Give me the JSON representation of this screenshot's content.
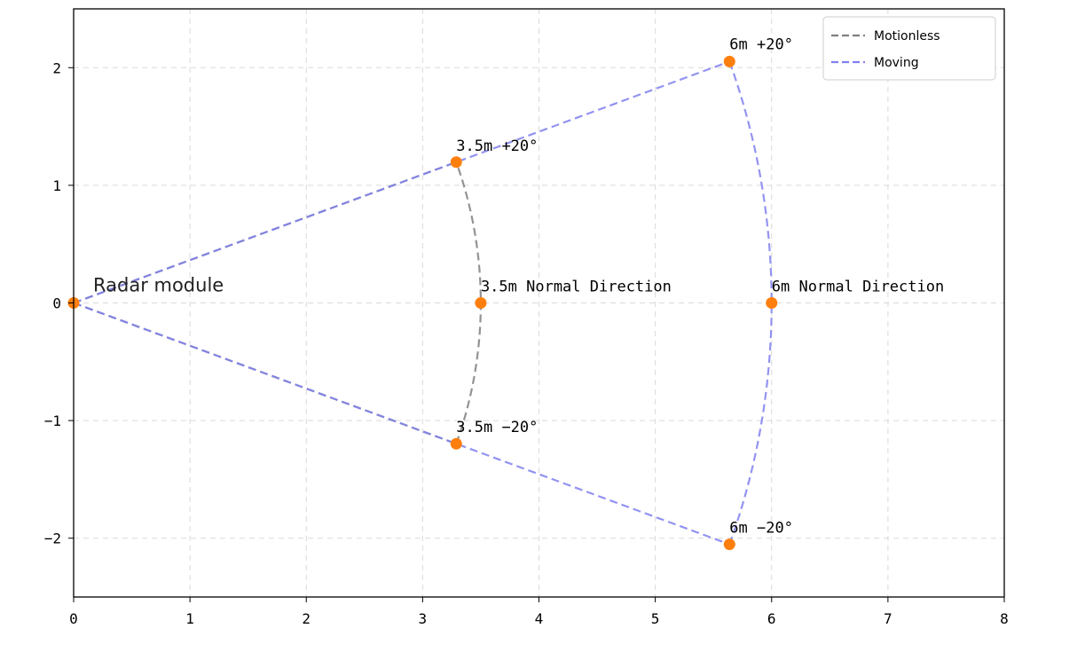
{
  "chart_data": {
    "type": "line",
    "title": "",
    "xlabel": "",
    "ylabel": "",
    "xlim": [
      0,
      8
    ],
    "ylim": [
      -2.5,
      2.5
    ],
    "x_ticks": [
      0,
      1,
      2,
      3,
      4,
      5,
      6,
      7,
      8
    ],
    "y_ticks": [
      -2,
      -1,
      0,
      1,
      2
    ],
    "grid": true,
    "legend_position": "top-right",
    "series": [
      {
        "name": "Motionless",
        "color": "#808080",
        "line_style": "dashed",
        "range_m": 3.5,
        "angle_min_deg": -20,
        "angle_max_deg": 20
      },
      {
        "name": "Moving",
        "color": "#8080f0",
        "line_style": "dashed",
        "range_m": 6,
        "angle_min_deg": -20,
        "angle_max_deg": 20
      }
    ],
    "points": [
      {
        "x": 0,
        "y": 0,
        "label": "Radar module"
      },
      {
        "x": 3.289,
        "y": 1.197,
        "label": "3.5m  +20°"
      },
      {
        "x": 3.5,
        "y": 0,
        "label": "3.5m Normal Direction"
      },
      {
        "x": 3.289,
        "y": -1.197,
        "label": "3.5m  −20°"
      },
      {
        "x": 5.638,
        "y": 2.052,
        "label": "6m  +20°"
      },
      {
        "x": 6,
        "y": 0,
        "label": "6m  Normal Direction"
      },
      {
        "x": 5.638,
        "y": -2.052,
        "label": "6m  −20°"
      }
    ],
    "point_color": "#ff7f0e"
  }
}
